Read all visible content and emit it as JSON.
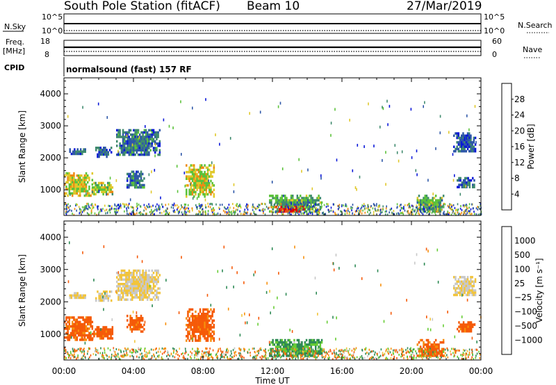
{
  "header": {
    "station": "South Pole Station (fitACF)",
    "beam": "Beam 10",
    "date": "27/Mar/2019"
  },
  "strips": {
    "nsky_label": "N.Sky",
    "nsearch_label": "N.Search",
    "nsky_ticks": [
      "10^5",
      "10^0"
    ],
    "freq_label": "Freq.",
    "freq_unit": "[MHz]",
    "freq_ticks": [
      "18",
      "8"
    ],
    "nave_label": "Nave",
    "nave_ticks": [
      "60",
      "0"
    ],
    "cpid_label": "CPID",
    "cpid_text": "normalsound (fast) 157 RF"
  },
  "colors": {
    "power": [
      "#0a18d8",
      "#2e57a8",
      "#3f8a6e",
      "#5bc23a",
      "#e0c82a",
      "#ee8a12",
      "#e8501a",
      "#e00000"
    ],
    "velocity": [
      "#e00000",
      "#f55a08",
      "#f7900c",
      "#f2c43a",
      "#c8c8c8",
      "#66cc33",
      "#2e8a55",
      "#2e57a8",
      "#1a2acc"
    ]
  },
  "chart_data": [
    {
      "type": "heatmap",
      "name": "Power",
      "xlabel": "Time UT",
      "ylabel": "Slant Range [km]",
      "xlim": [
        0,
        24
      ],
      "ylim": [
        200,
        4500
      ],
      "xticks": [
        "00:00",
        "04:00",
        "08:00",
        "12:00",
        "16:00",
        "20:00",
        "00:00"
      ],
      "yticks": [
        1000,
        2000,
        3000,
        4000
      ],
      "colorbar": {
        "label": "Power [dB]",
        "ticks": [
          "4",
          "8",
          "12",
          "16",
          "20",
          "24",
          "28"
        ],
        "range": [
          0,
          32
        ]
      },
      "regions": [
        {
          "t0": 0.0,
          "t1": 1.6,
          "r0": 800,
          "r1": 1550,
          "value": 18
        },
        {
          "t0": 1.6,
          "t1": 2.8,
          "r0": 900,
          "r1": 1250,
          "value": 16
        },
        {
          "t0": 0.3,
          "t1": 1.2,
          "r0": 2100,
          "r1": 2300,
          "value": 7
        },
        {
          "t0": 1.8,
          "t1": 2.7,
          "r0": 2050,
          "r1": 2350,
          "value": 6
        },
        {
          "t0": 3.0,
          "t1": 5.5,
          "r0": 2100,
          "r1": 2900,
          "value": 8
        },
        {
          "t0": 3.6,
          "t1": 4.6,
          "r0": 1100,
          "r1": 1600,
          "value": 8
        },
        {
          "t0": 7.0,
          "t1": 8.6,
          "r0": 800,
          "r1": 1800,
          "value": 17
        },
        {
          "t0": 11.8,
          "t1": 14.8,
          "r0": 300,
          "r1": 850,
          "value": 12
        },
        {
          "t0": 12.1,
          "t1": 13.8,
          "r0": 300,
          "r1": 500,
          "value": 28
        },
        {
          "t0": 20.3,
          "t1": 21.8,
          "r0": 300,
          "r1": 850,
          "value": 12
        },
        {
          "t0": 22.4,
          "t1": 23.7,
          "r0": 2200,
          "r1": 2800,
          "value": 6
        },
        {
          "t0": 22.6,
          "t1": 23.6,
          "r0": 1100,
          "r1": 1400,
          "value": 7
        }
      ]
    },
    {
      "type": "heatmap",
      "name": "Velocity",
      "xlabel": "Time UT",
      "ylabel": "Slant Range [km]",
      "xlim": [
        0,
        24
      ],
      "ylim": [
        200,
        4500
      ],
      "xticks": [
        "00:00",
        "04:00",
        "08:00",
        "12:00",
        "16:00",
        "20:00",
        "00:00"
      ],
      "yticks": [
        1000,
        2000,
        3000,
        4000
      ],
      "colorbar": {
        "label": "Velocity [m s⁻¹]",
        "ticks": [
          "1000",
          "500",
          "100",
          "25",
          "−25",
          "−100",
          "−500",
          "−1000"
        ],
        "range": [
          -1000,
          1000
        ]
      },
      "regions": [
        {
          "t0": 0.0,
          "t1": 1.6,
          "r0": 800,
          "r1": 1550,
          "value": -200
        },
        {
          "t0": 1.6,
          "t1": 2.8,
          "r0": 900,
          "r1": 1250,
          "value": -200
        },
        {
          "t0": 0.3,
          "t1": 1.2,
          "r0": 2100,
          "r1": 2300,
          "value": 0
        },
        {
          "t0": 1.8,
          "t1": 2.7,
          "r0": 2050,
          "r1": 2350,
          "value": 0
        },
        {
          "t0": 3.0,
          "t1": 5.5,
          "r0": 2100,
          "r1": 3000,
          "value": 0
        },
        {
          "t0": 3.6,
          "t1": 4.6,
          "r0": 1100,
          "r1": 1600,
          "value": -200
        },
        {
          "t0": 7.0,
          "t1": 8.6,
          "r0": 800,
          "r1": 1800,
          "value": -200
        },
        {
          "t0": 11.8,
          "t1": 14.8,
          "r0": 300,
          "r1": 850,
          "value": 150
        },
        {
          "t0": 20.3,
          "t1": 21.8,
          "r0": 300,
          "r1": 850,
          "value": -200
        },
        {
          "t0": 22.4,
          "t1": 23.7,
          "r0": 2200,
          "r1": 2800,
          "value": 0
        },
        {
          "t0": 22.6,
          "t1": 23.6,
          "r0": 1100,
          "r1": 1400,
          "value": -200
        }
      ]
    }
  ]
}
